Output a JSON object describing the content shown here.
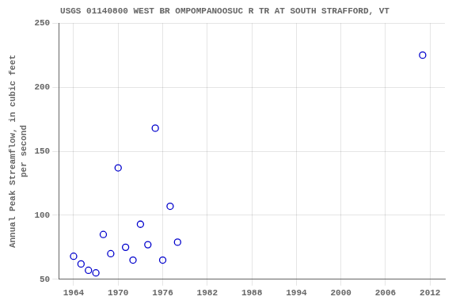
{
  "chart_data": {
    "type": "scatter",
    "title": "USGS 01140800 WEST BR OMPOMPANOOSUC R TR AT SOUTH STRAFFORD, VT",
    "ylabel": [
      "Annual Peak Streamflow, in cubic feet",
      "per second"
    ],
    "x": [
      1964,
      1965,
      1966,
      1967,
      1968,
      1969,
      1970,
      1971,
      1972,
      1973,
      1974,
      1975,
      1976,
      1977,
      1978,
      2011
    ],
    "values": [
      68,
      62,
      57,
      55,
      85,
      70,
      137,
      75,
      65,
      93,
      77,
      168,
      65,
      107,
      79,
      225
    ],
    "color": "#0000cc",
    "marker": "circle",
    "xlim": [
      1962,
      2014
    ],
    "ylim": [
      50,
      250
    ],
    "xticks": [
      1964,
      1970,
      1976,
      1982,
      1988,
      1994,
      2000,
      2006,
      2012
    ],
    "yticks": [
      50,
      100,
      150,
      200,
      250
    ],
    "grid": true
  }
}
